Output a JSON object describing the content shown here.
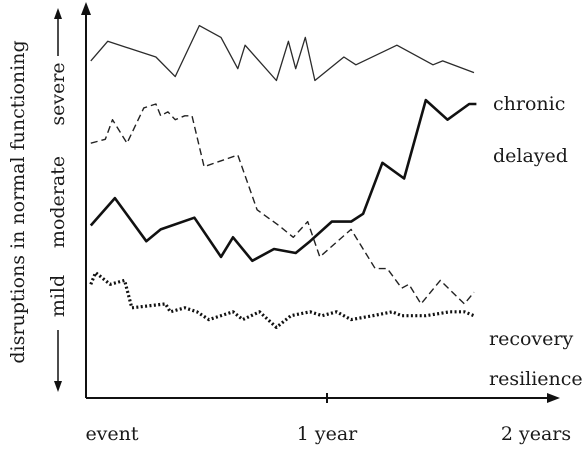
{
  "chart_data": {
    "type": "line",
    "ylabel": "disruptions in normal functioning",
    "y_levels": [
      "mild",
      "moderate",
      "severe"
    ],
    "x_ticks": [
      {
        "label": "event",
        "value": 0
      },
      {
        "label": "1 year",
        "value": 1
      },
      {
        "label": "2 years",
        "value": 2
      }
    ],
    "xlim": [
      0,
      2
    ],
    "ylim": [
      0,
      100
    ],
    "grid": false,
    "legend": "inline-right",
    "series": [
      {
        "name": "chronic",
        "style": "thin",
        "points": [
          [
            0.02,
            86
          ],
          [
            0.09,
            91
          ],
          [
            0.29,
            87
          ],
          [
            0.37,
            82
          ],
          [
            0.47,
            95
          ],
          [
            0.56,
            92
          ],
          [
            0.63,
            84
          ],
          [
            0.66,
            90
          ],
          [
            0.79,
            81
          ],
          [
            0.84,
            91
          ],
          [
            0.87,
            84
          ],
          [
            0.91,
            92
          ],
          [
            0.95,
            81
          ],
          [
            1.07,
            87
          ],
          [
            1.12,
            85
          ],
          [
            1.29,
            90
          ],
          [
            1.44,
            85
          ],
          [
            1.48,
            86
          ],
          [
            1.61,
            83
          ]
        ]
      },
      {
        "name": "delayed",
        "style": "thick",
        "points": [
          [
            0.02,
            44
          ],
          [
            0.12,
            51
          ],
          [
            0.25,
            40
          ],
          [
            0.31,
            43
          ],
          [
            0.45,
            46
          ],
          [
            0.56,
            36
          ],
          [
            0.61,
            41
          ],
          [
            0.69,
            35
          ],
          [
            0.78,
            38
          ],
          [
            0.87,
            37
          ],
          [
            0.93,
            40
          ],
          [
            1.02,
            45
          ],
          [
            1.1,
            45
          ],
          [
            1.15,
            47
          ],
          [
            1.23,
            60
          ],
          [
            1.32,
            56
          ],
          [
            1.41,
            76
          ],
          [
            1.5,
            71
          ],
          [
            1.59,
            75
          ],
          [
            1.62,
            75
          ]
        ]
      },
      {
        "name": "recovery",
        "style": "dashed",
        "points": [
          [
            0.02,
            65
          ],
          [
            0.08,
            66
          ],
          [
            0.11,
            71
          ],
          [
            0.17,
            65
          ],
          [
            0.24,
            74
          ],
          [
            0.29,
            75
          ],
          [
            0.31,
            72
          ],
          [
            0.34,
            73
          ],
          [
            0.37,
            71
          ],
          [
            0.41,
            72
          ],
          [
            0.44,
            72
          ],
          [
            0.49,
            59
          ],
          [
            0.63,
            62
          ],
          [
            0.71,
            48
          ],
          [
            0.8,
            44
          ],
          [
            0.86,
            41
          ],
          [
            0.92,
            45
          ],
          [
            0.97,
            36
          ],
          [
            1.1,
            43
          ],
          [
            1.2,
            33
          ],
          [
            1.25,
            33
          ],
          [
            1.31,
            28
          ],
          [
            1.34,
            29
          ],
          [
            1.39,
            24
          ],
          [
            1.47,
            30
          ],
          [
            1.57,
            24
          ],
          [
            1.61,
            27
          ]
        ]
      },
      {
        "name": "resilience",
        "style": "dotted",
        "points": [
          [
            0.02,
            29
          ],
          [
            0.04,
            32
          ],
          [
            0.06,
            31
          ],
          [
            0.1,
            29
          ],
          [
            0.16,
            30
          ],
          [
            0.19,
            23
          ],
          [
            0.33,
            24
          ],
          [
            0.35,
            22
          ],
          [
            0.41,
            23
          ],
          [
            0.46,
            22
          ],
          [
            0.51,
            20
          ],
          [
            0.61,
            22
          ],
          [
            0.65,
            20
          ],
          [
            0.72,
            22
          ],
          [
            0.79,
            18
          ],
          [
            0.85,
            21
          ],
          [
            0.93,
            22
          ],
          [
            0.98,
            21
          ],
          [
            1.04,
            22
          ],
          [
            1.1,
            20
          ],
          [
            1.19,
            21
          ],
          [
            1.27,
            22
          ],
          [
            1.31,
            21
          ],
          [
            1.41,
            21
          ],
          [
            1.51,
            22
          ],
          [
            1.57,
            22
          ],
          [
            1.61,
            21
          ]
        ]
      }
    ]
  }
}
